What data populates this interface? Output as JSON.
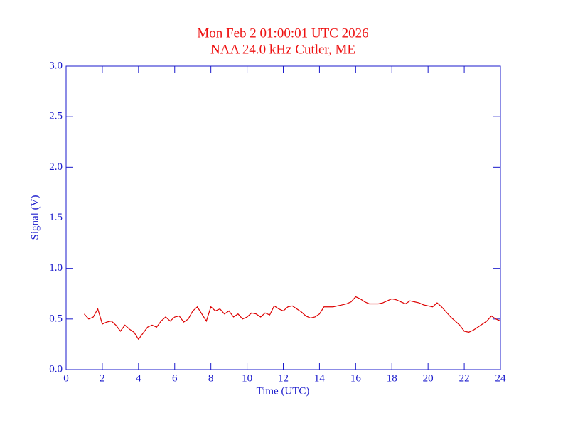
{
  "chart_data": {
    "type": "line",
    "title": "Mon Feb 2 01:00:01 UTC 2026",
    "subtitle": "NAA 24.0 kHz Cutler, ME",
    "xlabel": "Time (UTC)",
    "ylabel": "Signal (V)",
    "xlim": [
      0,
      24
    ],
    "ylim": [
      0,
      3
    ],
    "xticks": [
      0,
      2,
      4,
      6,
      8,
      10,
      12,
      14,
      16,
      18,
      20,
      22,
      24
    ],
    "yticks": [
      {
        "value": 0,
        "label": "0.0"
      },
      0.5,
      {
        "value": 1,
        "label": "1.0"
      },
      1.5,
      {
        "value": 2,
        "label": "2.0"
      },
      2.5,
      {
        "value": 3,
        "label": "3.0"
      }
    ],
    "axis_color": "#1a1acc",
    "title_color": "#ee1111",
    "series": [
      {
        "color": "#dd0000",
        "x": [
          1.0,
          1.25,
          1.5,
          1.75,
          2.0,
          2.25,
          2.5,
          2.75,
          3.0,
          3.25,
          3.5,
          3.75,
          4.0,
          4.25,
          4.5,
          4.75,
          5.0,
          5.25,
          5.5,
          5.75,
          6.0,
          6.25,
          6.5,
          6.75,
          7.0,
          7.25,
          7.5,
          7.75,
          8.0,
          8.25,
          8.5,
          8.75,
          9.0,
          9.25,
          9.5,
          9.75,
          10.0,
          10.25,
          10.5,
          10.75,
          11.0,
          11.25,
          11.5,
          11.75,
          12.0,
          12.25,
          12.5,
          12.75,
          13.0,
          13.25,
          13.5,
          13.75,
          14.0,
          14.25,
          14.5,
          14.75,
          15.0,
          15.25,
          15.5,
          15.75,
          16.0,
          16.25,
          16.5,
          16.75,
          17.0,
          17.25,
          17.5,
          17.75,
          18.0,
          18.25,
          18.5,
          18.75,
          19.0,
          19.25,
          19.5,
          19.75,
          20.0,
          20.25,
          20.5,
          20.75,
          21.0,
          21.25,
          21.5,
          21.75,
          22.0,
          22.25,
          22.5,
          22.75,
          23.0,
          23.25,
          23.5,
          23.75,
          24.0
        ],
        "values": [
          0.55,
          0.5,
          0.52,
          0.6,
          0.45,
          0.47,
          0.48,
          0.44,
          0.38,
          0.44,
          0.4,
          0.37,
          0.3,
          0.36,
          0.42,
          0.44,
          0.42,
          0.48,
          0.52,
          0.48,
          0.52,
          0.53,
          0.47,
          0.5,
          0.58,
          0.62,
          0.55,
          0.48,
          0.62,
          0.58,
          0.6,
          0.55,
          0.58,
          0.52,
          0.55,
          0.5,
          0.52,
          0.56,
          0.55,
          0.52,
          0.56,
          0.54,
          0.63,
          0.6,
          0.58,
          0.62,
          0.63,
          0.6,
          0.57,
          0.53,
          0.51,
          0.52,
          0.55,
          0.62,
          0.62,
          0.62,
          0.63,
          0.64,
          0.65,
          0.67,
          0.72,
          0.7,
          0.67,
          0.65,
          0.65,
          0.65,
          0.66,
          0.68,
          0.7,
          0.69,
          0.67,
          0.65,
          0.68,
          0.67,
          0.66,
          0.64,
          0.63,
          0.62,
          0.66,
          0.62,
          0.57,
          0.52,
          0.48,
          0.44,
          0.38,
          0.37,
          0.39,
          0.42,
          0.45,
          0.48,
          0.53,
          0.5,
          0.48
        ]
      }
    ]
  }
}
